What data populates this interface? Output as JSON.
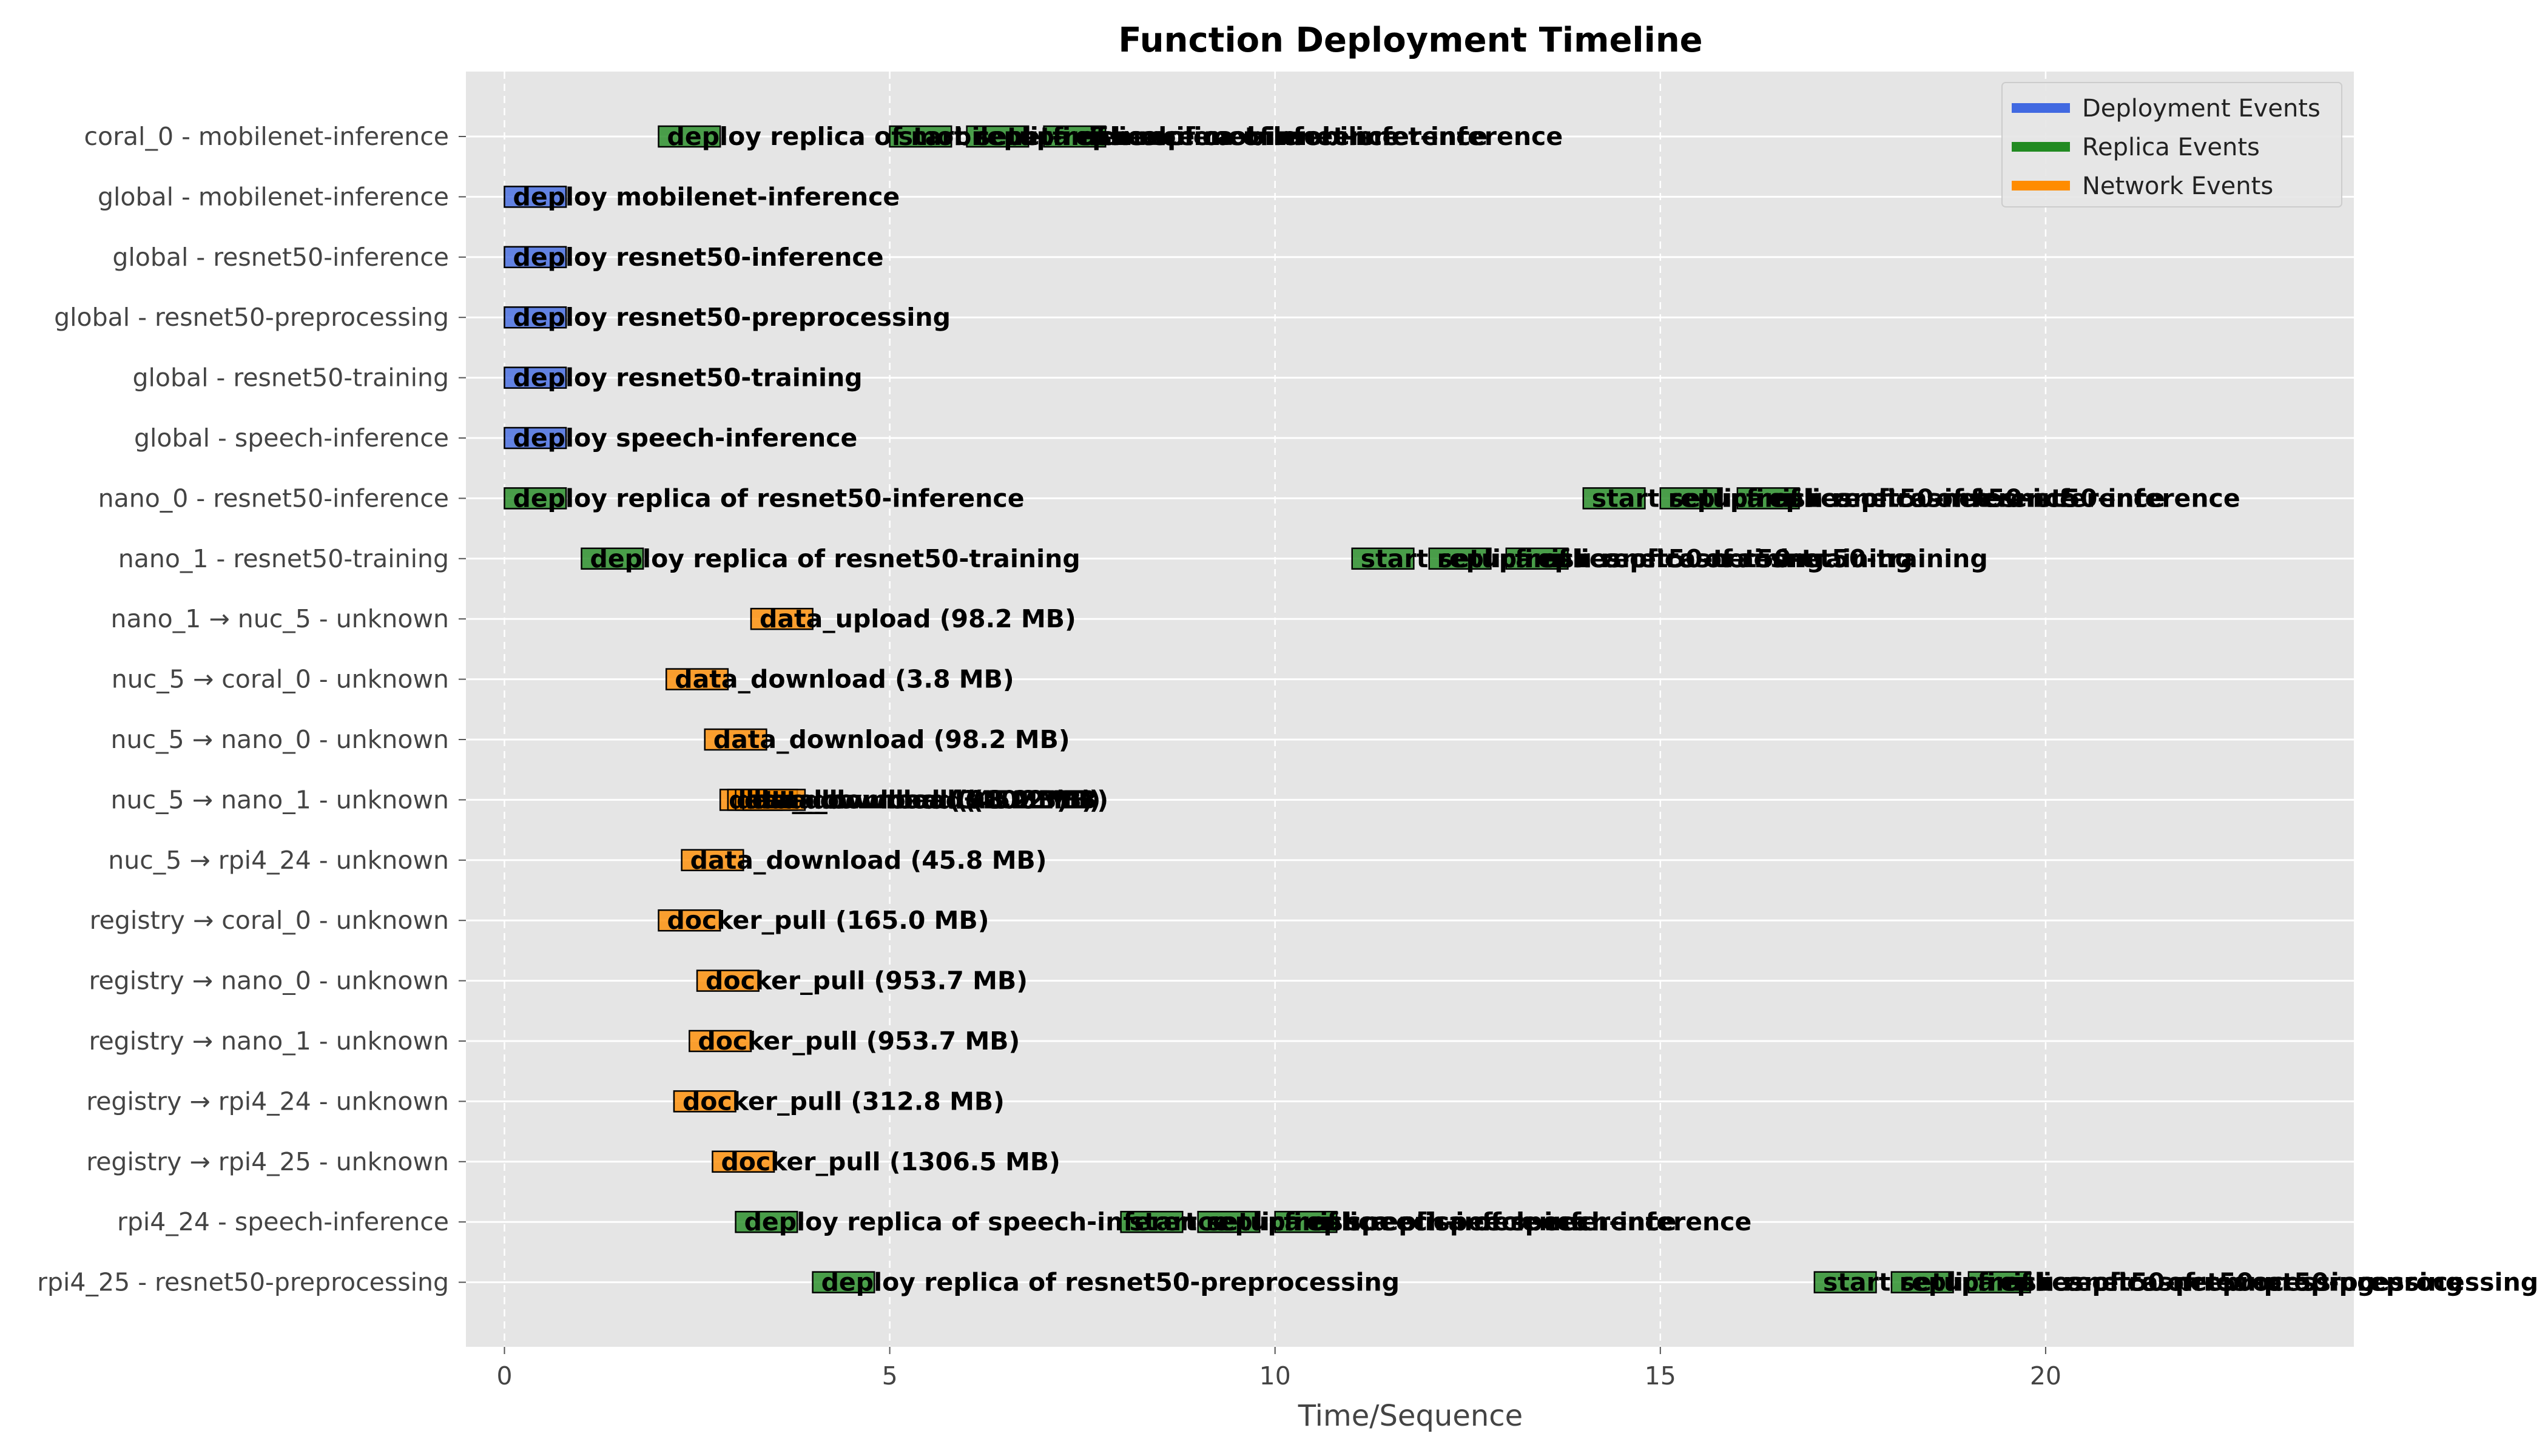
{
  "chart_data": {
    "type": "timeline",
    "title": "Function Deployment Timeline",
    "xlabel": "Time/Sequence",
    "ylabel": "",
    "xlim": [
      -0.5,
      24.0
    ],
    "xticks": [
      0,
      5,
      10,
      15,
      20
    ],
    "grid": true,
    "legend_placement": "top-right",
    "bar_duration": 0.8,
    "categories": [
      "coral_0 - mobilenet-inference",
      "global - mobilenet-inference",
      "global - resnet50-inference",
      "global - resnet50-preprocessing",
      "global - resnet50-training",
      "global - speech-inference",
      "nano_0 - resnet50-inference",
      "nano_1 - resnet50-training",
      "nano_1 → nuc_5 - unknown",
      "nuc_5 → coral_0 - unknown",
      "nuc_5 → nano_0 - unknown",
      "nuc_5 → nano_1 - unknown",
      "nuc_5 → rpi4_24 - unknown",
      "registry → coral_0 - unknown",
      "registry → nano_0 - unknown",
      "registry → nano_1 - unknown",
      "registry → rpi4_24 - unknown",
      "registry → rpi4_25 - unknown",
      "rpi4_24 - speech-inference",
      "rpi4_25 - resnet50-preprocessing"
    ],
    "series": [
      {
        "name": "Deployment Events",
        "color": "#4169e1"
      },
      {
        "name": "Replica Events",
        "color": "#228b22"
      },
      {
        "name": "Network Events",
        "color": "#ff8c00"
      }
    ],
    "events": [
      {
        "row": 0,
        "start": 2.0,
        "series": 1,
        "label": "deploy replica of mobilenet-inference"
      },
      {
        "row": 0,
        "start": 5.0,
        "series": 1,
        "label": "start replica of mobilenet-inference"
      },
      {
        "row": 0,
        "start": 6.0,
        "series": 1,
        "label": "setup replica of mobilenet-inference"
      },
      {
        "row": 0,
        "start": 7.0,
        "series": 1,
        "label": "finish replica of mobilenet-inference"
      },
      {
        "row": 1,
        "start": 0.0,
        "series": 0,
        "label": "deploy mobilenet-inference"
      },
      {
        "row": 2,
        "start": 0.0,
        "series": 0,
        "label": "deploy resnet50-inference"
      },
      {
        "row": 3,
        "start": 0.0,
        "series": 0,
        "label": "deploy resnet50-preprocessing"
      },
      {
        "row": 4,
        "start": 0.0,
        "series": 0,
        "label": "deploy resnet50-training"
      },
      {
        "row": 5,
        "start": 0.0,
        "series": 0,
        "label": "deploy speech-inference"
      },
      {
        "row": 6,
        "start": 0.0,
        "series": 1,
        "label": "deploy replica of resnet50-inference"
      },
      {
        "row": 6,
        "start": 14.0,
        "series": 1,
        "label": "start replica of resnet50-inference"
      },
      {
        "row": 6,
        "start": 15.0,
        "series": 1,
        "label": "setup replica of resnet50-inference"
      },
      {
        "row": 6,
        "start": 16.0,
        "series": 1,
        "label": "finish replica of resnet50-inference"
      },
      {
        "row": 7,
        "start": 1.0,
        "series": 1,
        "label": "deploy replica of resnet50-training"
      },
      {
        "row": 7,
        "start": 11.0,
        "series": 1,
        "label": "start replica of resnet50-training"
      },
      {
        "row": 7,
        "start": 12.0,
        "series": 1,
        "label": "setup replica of resnet50-training"
      },
      {
        "row": 7,
        "start": 13.0,
        "series": 1,
        "label": "finish replica of resnet50-training"
      },
      {
        "row": 8,
        "start": 3.2,
        "series": 2,
        "label": "data_upload (98.2 MB)"
      },
      {
        "row": 9,
        "start": 2.1,
        "series": 2,
        "label": "data_download (3.8 MB)"
      },
      {
        "row": 10,
        "start": 2.6,
        "series": 2,
        "label": "data_download (98.2 MB)"
      },
      {
        "row": 11,
        "start": 2.8,
        "series": 2,
        "label": "data_download (3.8 MB)"
      },
      {
        "row": 11,
        "start": 2.9,
        "series": 2,
        "label": "data_download (98.2 MB)"
      },
      {
        "row": 11,
        "start": 3.0,
        "series": 2,
        "label": "data_download (45.8 MB)"
      },
      {
        "row": 11,
        "start": 3.1,
        "series": 2,
        "label": "data_download (10.2 MB)"
      },
      {
        "row": 12,
        "start": 2.3,
        "series": 2,
        "label": "data_download (45.8 MB)"
      },
      {
        "row": 13,
        "start": 2.0,
        "series": 2,
        "label": "docker_pull (165.0 MB)"
      },
      {
        "row": 14,
        "start": 2.5,
        "series": 2,
        "label": "docker_pull (953.7 MB)"
      },
      {
        "row": 15,
        "start": 2.4,
        "series": 2,
        "label": "docker_pull (953.7 MB)"
      },
      {
        "row": 16,
        "start": 2.2,
        "series": 2,
        "label": "docker_pull (312.8 MB)"
      },
      {
        "row": 17,
        "start": 2.7,
        "series": 2,
        "label": "docker_pull (1306.5 MB)"
      },
      {
        "row": 18,
        "start": 3.0,
        "series": 1,
        "label": "deploy replica of speech-inference"
      },
      {
        "row": 18,
        "start": 8.0,
        "series": 1,
        "label": "start replica of speech-inference"
      },
      {
        "row": 18,
        "start": 9.0,
        "series": 1,
        "label": "setup replica of speech-inference"
      },
      {
        "row": 18,
        "start": 10.0,
        "series": 1,
        "label": "finish replica of speech-inference"
      },
      {
        "row": 19,
        "start": 4.0,
        "series": 1,
        "label": "deploy replica of resnet50-preprocessing"
      },
      {
        "row": 19,
        "start": 17.0,
        "series": 1,
        "label": "start replica of resnet50-preprocessing"
      },
      {
        "row": 19,
        "start": 18.0,
        "series": 1,
        "label": "setup replica of resnet50-preprocessing"
      },
      {
        "row": 19,
        "start": 19.0,
        "series": 1,
        "label": "finish replica of resnet50-preprocessing"
      }
    ]
  }
}
